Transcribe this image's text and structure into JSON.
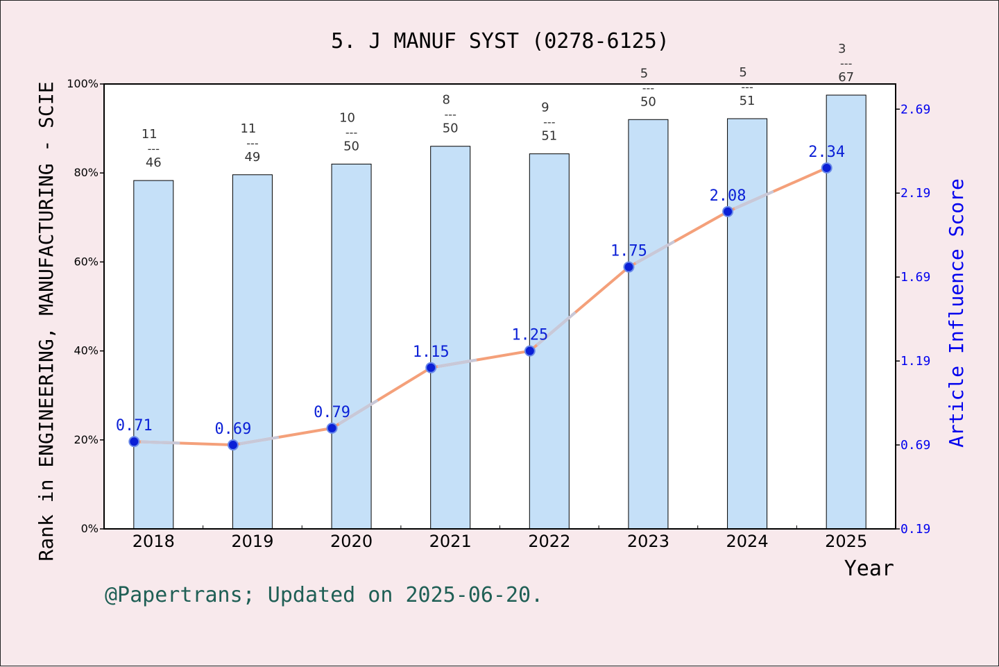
{
  "chart_data": {
    "type": "bar",
    "title": "5. J MANUF SYST (0278-6125)",
    "xlabel": "Year",
    "ylabel": "Rank in ENGINEERING, MANUFACTURING - SCIE",
    "y2label": "Article Influence Score",
    "footnote": "@Papertrans; Updated on 2025-06-20.",
    "categories": [
      "2018",
      "2019",
      "2020",
      "2021",
      "2022",
      "2023",
      "2024",
      "2025"
    ],
    "ylim": [
      0,
      100
    ],
    "y_ticks": [
      "0%",
      "20%",
      "40%",
      "60%",
      "80%",
      "100%"
    ],
    "y2lim": [
      0.19,
      2.84
    ],
    "y2_ticks": [
      "0.19",
      "0.69",
      "1.19",
      "1.69",
      "2.19",
      "2.69"
    ],
    "series": [
      {
        "type": "bar",
        "values": [
          78.3,
          79.6,
          82.0,
          86.0,
          84.3,
          92.0,
          92.2,
          97.5
        ],
        "labels": [
          {
            "top": "11",
            "mid": "---",
            "bottom": "46"
          },
          {
            "top": "11",
            "mid": "---",
            "bottom": "49"
          },
          {
            "top": "10",
            "mid": "---",
            "bottom": "50"
          },
          {
            "top": "8",
            "mid": "---",
            "bottom": "50"
          },
          {
            "top": "9",
            "mid": "---",
            "bottom": "51"
          },
          {
            "top": "5",
            "mid": "---",
            "bottom": "50"
          },
          {
            "top": "5",
            "mid": "---",
            "bottom": "51"
          },
          {
            "top": "3",
            "mid": "---",
            "bottom": "67"
          }
        ]
      },
      {
        "type": "line",
        "axis": "right",
        "values": [
          0.71,
          0.69,
          0.79,
          1.15,
          1.25,
          1.75,
          2.08,
          2.34
        ],
        "labels": [
          "0.71",
          "0.69",
          "0.79",
          "1.15",
          "1.25",
          "1.75",
          "2.08",
          "2.34"
        ]
      }
    ],
    "grid": false,
    "colors": {
      "bar_fill": "#c5e0f8",
      "line": "#f4a07a",
      "line_highlight": "#c8c8d8",
      "marker": "#0a1fd6",
      "right_axis": "#0000ee",
      "footnote": "#1f5f55",
      "background": "#f8e9ec"
    }
  }
}
